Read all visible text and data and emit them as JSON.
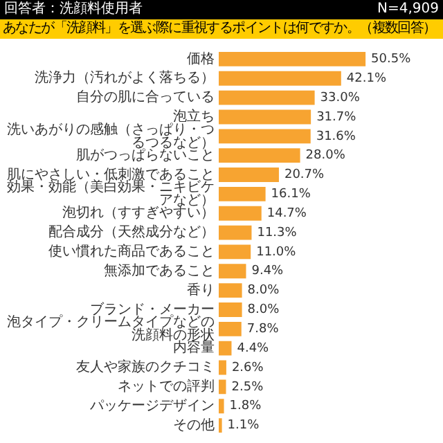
{
  "chart_data": {
    "type": "bar",
    "orientation": "horizontal",
    "title": "回答者：洗顔料使用者",
    "subtitle": "あなたが「洗顔料」を選ぶ際に重視するポイントは何ですか。（複数回答）",
    "annotations": [
      "N=4,909"
    ],
    "categories": [
      "価格",
      "洗浄力（汚れがよく落ちる）",
      "自分の肌に合っている",
      "泡立ち",
      "洗いあがりの感触（さっぱり・つるつるなど）",
      "肌がつっぱらないこと",
      "肌にやさしい・低刺激であること",
      "効果・効能（美白効果・ニキビケアなど）",
      "泡切れ（すすぎやすい）",
      "配合成分（天然成分など）",
      "使い慣れた商品であること",
      "無添加であること",
      "香り",
      "ブランド・メーカー",
      "泡タイプ・クリームタイプなどの洗顔料の形状",
      "内容量",
      "友人や家族のクチコミ",
      "ネットでの評判",
      "パッケージデザイン",
      "その他"
    ],
    "values": [
      50.5,
      42.1,
      33.0,
      31.7,
      31.6,
      28.0,
      20.7,
      16.1,
      14.7,
      11.3,
      11.0,
      9.4,
      8.0,
      8.0,
      7.8,
      4.4,
      2.6,
      2.5,
      1.8,
      1.1
    ],
    "value_labels": [
      "50.5%",
      "42.1%",
      "33.0%",
      "31.7%",
      "31.6%",
      "28.0%",
      "20.7%",
      "16.1%",
      "14.7%",
      "11.3%",
      "11.0%",
      "9.4%",
      "8.0%",
      "8.0%",
      "7.8%",
      "4.4%",
      "2.6%",
      "2.5%",
      "1.8%",
      "1.1%"
    ],
    "color": "#f7a431",
    "grid": false,
    "legend": false,
    "tick_labels": "y"
  }
}
